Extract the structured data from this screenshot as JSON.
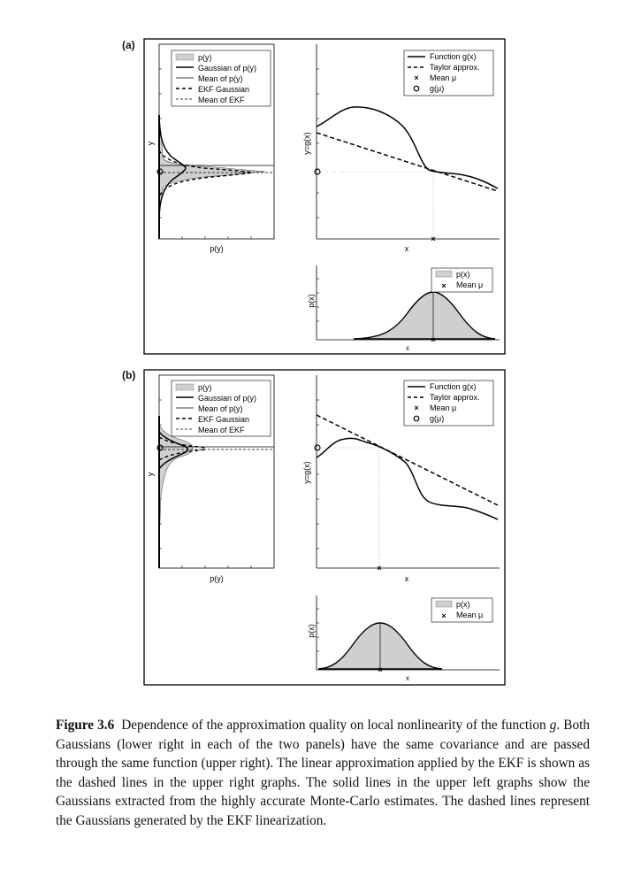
{
  "panels": [
    {
      "label": "(a)",
      "left": {
        "xlabel": "p(y)",
        "ylabel": "y",
        "legend": [
          "p(y)",
          "Gaussian of p(y)",
          "Mean of p(y)",
          "EKF Gaussian",
          "Mean of EKF"
        ]
      },
      "upper_right": {
        "xlabel": "x",
        "ylabel": "y=g(x)",
        "legend": [
          "Function g(x)",
          "Taylor approx.",
          "Mean μ",
          "g(μ)"
        ]
      },
      "lower_right": {
        "xlabel": "x",
        "ylabel": "p(x)",
        "legend": [
          "p(x)",
          "Mean μ"
        ]
      }
    },
    {
      "label": "(b)",
      "left": {
        "xlabel": "p(y)",
        "ylabel": "y",
        "legend": [
          "p(y)",
          "Gaussian of p(y)",
          "Mean of p(y)",
          "EKF Gaussian",
          "Mean of EKF"
        ]
      },
      "upper_right": {
        "xlabel": "x",
        "ylabel": "y=g(x)",
        "legend": [
          "Function g(x)",
          "Taylor approx.",
          "Mean μ",
          "g(μ)"
        ]
      },
      "lower_right": {
        "xlabel": "x",
        "ylabel": "p(x)",
        "legend": [
          "p(x)",
          "Mean μ"
        ]
      }
    }
  ],
  "caption": {
    "figure_number": "Figure 3.6",
    "before_g": "Dependence of the approximation quality on local nonlinearity of the function ",
    "g_symbol": "g",
    "after_g": ". Both Gaussians (lower right in each of the two panels) have the same covariance and are passed through the same function (upper right). The linear approximation applied by the EKF is shown as the dashed lines in the upper right graphs. The solid lines in the upper left graphs show the Gaussians extracted from the highly accurate Monte-Carlo estimates. The dashed lines represent the Gaussians generated by the EKF linearization."
  }
}
